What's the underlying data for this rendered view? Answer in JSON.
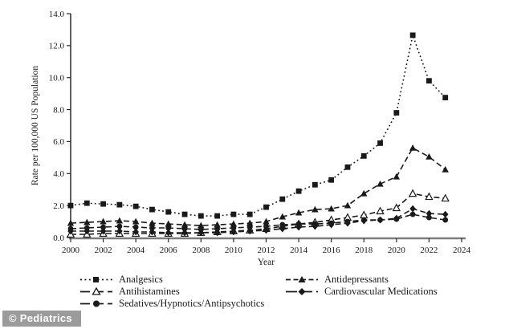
{
  "watermark": {
    "text": "© Pediatrics",
    "bg_color": "#9b9b9b",
    "text_color": "#ffffff"
  },
  "chart_data": {
    "type": "line",
    "title": "",
    "xlabel": "Year",
    "ylabel": "Rate per 100,000 US Population",
    "xlim": [
      2000,
      2024
    ],
    "ylim": [
      0,
      14
    ],
    "x_ticks": [
      2000,
      2002,
      2004,
      2006,
      2008,
      2010,
      2012,
      2014,
      2016,
      2018,
      2020,
      2022,
      2024
    ],
    "y_ticks": [
      0,
      2,
      4,
      6,
      8,
      10,
      12,
      14
    ],
    "y_tick_labels": [
      "0.0",
      "2.0",
      "4.0",
      "6.0",
      "8.0",
      "10.0",
      "12.0",
      "14.0"
    ],
    "grid": false,
    "legend_position": "below-chart, two columns",
    "line_color": "#1a1a1a",
    "x": [
      2000,
      2001,
      2002,
      2003,
      2004,
      2005,
      2006,
      2007,
      2008,
      2009,
      2010,
      2011,
      2012,
      2013,
      2014,
      2015,
      2016,
      2017,
      2018,
      2019,
      2020,
      2021,
      2022,
      2023
    ],
    "series": [
      {
        "name": "Analgesics",
        "marker": "square-filled",
        "dash": "dotted",
        "values": [
          2.0,
          2.15,
          2.1,
          2.05,
          1.95,
          1.75,
          1.6,
          1.45,
          1.35,
          1.35,
          1.45,
          1.45,
          1.9,
          2.4,
          2.9,
          3.3,
          3.6,
          4.4,
          5.1,
          5.9,
          7.8,
          12.65,
          9.8,
          8.75
        ]
      },
      {
        "name": "Antidepressants",
        "marker": "triangle-filled",
        "dash": "dashed",
        "values": [
          0.9,
          0.95,
          1.0,
          1.05,
          1.0,
          0.9,
          0.85,
          0.8,
          0.75,
          0.8,
          0.85,
          0.9,
          1.0,
          1.3,
          1.55,
          1.75,
          1.8,
          2.0,
          2.75,
          3.35,
          3.8,
          5.6,
          5.05,
          4.25
        ]
      },
      {
        "name": "Antihistamines",
        "marker": "triangle-open",
        "dash": "dashed",
        "values": [
          0.2,
          0.2,
          0.25,
          0.25,
          0.25,
          0.25,
          0.25,
          0.25,
          0.3,
          0.35,
          0.4,
          0.45,
          0.55,
          0.7,
          0.85,
          0.95,
          1.1,
          1.25,
          1.4,
          1.65,
          1.85,
          2.75,
          2.55,
          2.45
        ]
      },
      {
        "name": "Cardiovascular Medications",
        "marker": "diamond-filled",
        "dash": "dashed",
        "values": [
          0.4,
          0.4,
          0.4,
          0.4,
          0.35,
          0.35,
          0.3,
          0.3,
          0.3,
          0.3,
          0.35,
          0.4,
          0.45,
          0.55,
          0.65,
          0.7,
          0.8,
          0.9,
          1.05,
          1.1,
          1.2,
          1.8,
          1.5,
          1.45
        ]
      },
      {
        "name": "Sedatives/Hypnotics/Antipsychotics",
        "marker": "circle-filled",
        "dash": "dashed",
        "values": [
          0.55,
          0.6,
          0.65,
          0.7,
          0.65,
          0.6,
          0.6,
          0.55,
          0.5,
          0.55,
          0.6,
          0.65,
          0.7,
          0.8,
          0.85,
          0.85,
          0.9,
          1.0,
          1.1,
          1.1,
          1.15,
          1.45,
          1.25,
          1.1
        ]
      }
    ]
  }
}
